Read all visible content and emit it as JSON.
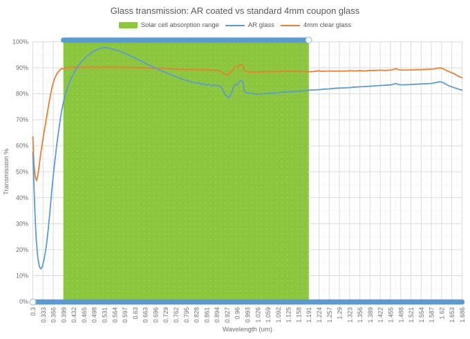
{
  "title": "Glass transmission: AR coated vs standard 4mm coupon glass",
  "legend": [
    {
      "label": "Solar cell absorption range",
      "type": "band",
      "color": "#8CC63F"
    },
    {
      "label": "AR glass",
      "type": "line",
      "color": "#5B9BD5"
    },
    {
      "label": "4mm clear glass",
      "type": "line",
      "color": "#ED7D31"
    }
  ],
  "colors": {
    "grid_major": "#DBDBDB",
    "grid_minor": "#E7E7E7",
    "range_bar": "#5B9BD5",
    "handle_fill": "#FFFFFF",
    "handle_stroke": "#9DC3E6",
    "title_text": "#595959",
    "tick_text": "#6E6E6E",
    "band_green": "#8CC63F",
    "series_blue": "#5B9BD5",
    "series_orange": "#ED7D31"
  },
  "chart_data": {
    "type": "line",
    "title": "Glass transmission: AR coated vs standard 4mm coupon glass",
    "xlabel": "Wavelength (um)",
    "ylabel": "Transmission %",
    "xlim": [
      0.3,
      1.686
    ],
    "ylim": [
      0,
      100
    ],
    "grid": {
      "major": "solid",
      "minor": "dotted"
    },
    "legend_position": "top",
    "x_ticks": [
      "0.3",
      "0.333",
      "0.366",
      "0.399",
      "0.432",
      "0.465",
      "0.498",
      "0.531",
      "0.564",
      "0.597",
      "0.63",
      "0.663",
      "0.696",
      "0.729",
      "0.762",
      "0.795",
      "0.828",
      "0.861",
      "0.894",
      "0.927",
      "0.96",
      "0.993",
      "1.026",
      "1.059",
      "1.092",
      "1.125",
      "1.158",
      "1.191",
      "1.224",
      "1.257",
      "1.29",
      "1.323",
      "1.356",
      "1.389",
      "1.422",
      "1.455",
      "1.488",
      "1.521",
      "1.554",
      "1.587",
      "1.62",
      "1.653",
      "1.686"
    ],
    "y_ticks": [
      "0%",
      "10%",
      "20%",
      "30%",
      "40%",
      "50%",
      "60%",
      "70%",
      "80%",
      "90%",
      "100%"
    ],
    "band": {
      "label": "Solar cell absorption range",
      "from": 0.399,
      "to": 1.191,
      "color": "#8CC63F"
    },
    "range_bars": [
      {
        "y": 100,
        "from": 0.399,
        "to": 1.191,
        "handle": "right"
      },
      {
        "y": 0,
        "from": 0.3,
        "to": 1.686,
        "handle": "left"
      }
    ],
    "series": [
      {
        "name": "AR glass",
        "color": "#5B9BD5",
        "points": [
          [
            0.3,
            57.5
          ],
          [
            0.303,
            47
          ],
          [
            0.307,
            34
          ],
          [
            0.311,
            24
          ],
          [
            0.316,
            17
          ],
          [
            0.321,
            13.5
          ],
          [
            0.326,
            12.6
          ],
          [
            0.33,
            13.2
          ],
          [
            0.336,
            16
          ],
          [
            0.343,
            21
          ],
          [
            0.35,
            28
          ],
          [
            0.357,
            37
          ],
          [
            0.363,
            45
          ],
          [
            0.37,
            53
          ],
          [
            0.378,
            61
          ],
          [
            0.386,
            68
          ],
          [
            0.393,
            73.5
          ],
          [
            0.399,
            77
          ],
          [
            0.407,
            80.5
          ],
          [
            0.415,
            83.5
          ],
          [
            0.424,
            86
          ],
          [
            0.432,
            88
          ],
          [
            0.441,
            89.8
          ],
          [
            0.45,
            91.2
          ],
          [
            0.458,
            92.4
          ],
          [
            0.465,
            93.3
          ],
          [
            0.474,
            94.3
          ],
          [
            0.483,
            95.2
          ],
          [
            0.492,
            96
          ],
          [
            0.5,
            96.6
          ],
          [
            0.51,
            97.2
          ],
          [
            0.52,
            97.6
          ],
          [
            0.531,
            97.8
          ],
          [
            0.542,
            97.7
          ],
          [
            0.553,
            97.4
          ],
          [
            0.564,
            97
          ],
          [
            0.575,
            96.6
          ],
          [
            0.586,
            96.1
          ],
          [
            0.597,
            95.6
          ],
          [
            0.608,
            95
          ],
          [
            0.619,
            94.4
          ],
          [
            0.63,
            93.8
          ],
          [
            0.641,
            93.1
          ],
          [
            0.652,
            92.4
          ],
          [
            0.663,
            91.8
          ],
          [
            0.674,
            91.1
          ],
          [
            0.685,
            90.5
          ],
          [
            0.696,
            89.9
          ],
          [
            0.707,
            89.3
          ],
          [
            0.718,
            88.7
          ],
          [
            0.729,
            88.2
          ],
          [
            0.74,
            87.6
          ],
          [
            0.751,
            87.2
          ],
          [
            0.762,
            86.6
          ],
          [
            0.773,
            86.1
          ],
          [
            0.784,
            85.6
          ],
          [
            0.795,
            85.2
          ],
          [
            0.806,
            84.8
          ],
          [
            0.817,
            84.5
          ],
          [
            0.828,
            84.1
          ],
          [
            0.836,
            84.3
          ],
          [
            0.844,
            83.6
          ],
          [
            0.852,
            84.0
          ],
          [
            0.861,
            83.3
          ],
          [
            0.869,
            83.7
          ],
          [
            0.877,
            83.0
          ],
          [
            0.886,
            83.5
          ],
          [
            0.894,
            83.2
          ],
          [
            0.903,
            83.0
          ],
          [
            0.911,
            82.0
          ],
          [
            0.919,
            80.2
          ],
          [
            0.927,
            78.9
          ],
          [
            0.933,
            78.5
          ],
          [
            0.94,
            79.8
          ],
          [
            0.947,
            82.3
          ],
          [
            0.953,
            83.6
          ],
          [
            0.96,
            83.4
          ],
          [
            0.966,
            84.6
          ],
          [
            0.972,
            85.2
          ],
          [
            0.978,
            84.6
          ],
          [
            0.983,
            81.0
          ],
          [
            0.989,
            80.3
          ],
          [
            0.993,
            80.4
          ],
          [
            1.005,
            80.1
          ],
          [
            1.026,
            79.9
          ],
          [
            1.045,
            80.0
          ],
          [
            1.059,
            80.1
          ],
          [
            1.075,
            80.2
          ],
          [
            1.092,
            80.4
          ],
          [
            1.108,
            80.6
          ],
          [
            1.125,
            80.8
          ],
          [
            1.141,
            80.9
          ],
          [
            1.158,
            81.0
          ],
          [
            1.175,
            81.2
          ],
          [
            1.191,
            81.4
          ],
          [
            1.208,
            81.5
          ],
          [
            1.224,
            81.6
          ],
          [
            1.241,
            81.8
          ],
          [
            1.257,
            81.9
          ],
          [
            1.274,
            82.1
          ],
          [
            1.29,
            82.2
          ],
          [
            1.307,
            82.3
          ],
          [
            1.323,
            82.4
          ],
          [
            1.34,
            82.6
          ],
          [
            1.356,
            82.7
          ],
          [
            1.373,
            82.8
          ],
          [
            1.389,
            82.9
          ],
          [
            1.406,
            83.1
          ],
          [
            1.422,
            83.2
          ],
          [
            1.438,
            83.3
          ],
          [
            1.455,
            83.4
          ],
          [
            1.465,
            83.7
          ],
          [
            1.472,
            84.0
          ],
          [
            1.48,
            83.6
          ],
          [
            1.488,
            83.5
          ],
          [
            1.505,
            83.5
          ],
          [
            1.521,
            83.6
          ],
          [
            1.538,
            83.7
          ],
          [
            1.554,
            83.8
          ],
          [
            1.57,
            83.9
          ],
          [
            1.587,
            84.0
          ],
          [
            1.597,
            84.2
          ],
          [
            1.607,
            84.5
          ],
          [
            1.617,
            84.6
          ],
          [
            1.627,
            84.2
          ],
          [
            1.637,
            83.5
          ],
          [
            1.647,
            82.9
          ],
          [
            1.657,
            82.5
          ],
          [
            1.667,
            82.1
          ],
          [
            1.677,
            81.7
          ],
          [
            1.686,
            81.4
          ]
        ]
      },
      {
        "name": "4mm clear glass",
        "color": "#ED7D31",
        "points": [
          [
            0.3,
            63.5
          ],
          [
            0.302,
            57
          ],
          [
            0.305,
            51
          ],
          [
            0.308,
            47.8
          ],
          [
            0.312,
            46.6
          ],
          [
            0.316,
            48.5
          ],
          [
            0.32,
            52
          ],
          [
            0.325,
            56.5
          ],
          [
            0.33,
            60.5
          ],
          [
            0.336,
            65
          ],
          [
            0.343,
            70
          ],
          [
            0.35,
            75
          ],
          [
            0.357,
            79.5
          ],
          [
            0.363,
            83
          ],
          [
            0.37,
            85.8
          ],
          [
            0.378,
            87.8
          ],
          [
            0.386,
            89
          ],
          [
            0.393,
            89.8
          ],
          [
            0.399,
            89.5
          ],
          [
            0.407,
            90.2
          ],
          [
            0.415,
            89.8
          ],
          [
            0.424,
            90.4
          ],
          [
            0.432,
            90.0
          ],
          [
            0.441,
            90.4
          ],
          [
            0.45,
            89.9
          ],
          [
            0.458,
            90.3
          ],
          [
            0.465,
            90.0
          ],
          [
            0.474,
            90.3
          ],
          [
            0.483,
            90.0
          ],
          [
            0.492,
            90.4
          ],
          [
            0.5,
            90.1
          ],
          [
            0.51,
            90.3
          ],
          [
            0.52,
            90.0
          ],
          [
            0.531,
            90.4
          ],
          [
            0.542,
            90.1
          ],
          [
            0.553,
            90.4
          ],
          [
            0.564,
            90.0
          ],
          [
            0.575,
            90.3
          ],
          [
            0.586,
            90.1
          ],
          [
            0.597,
            90.3
          ],
          [
            0.608,
            90.0
          ],
          [
            0.619,
            90.2
          ],
          [
            0.63,
            90.1
          ],
          [
            0.641,
            89.9
          ],
          [
            0.652,
            90.1
          ],
          [
            0.663,
            89.8
          ],
          [
            0.674,
            90.0
          ],
          [
            0.685,
            89.8
          ],
          [
            0.696,
            89.9
          ],
          [
            0.707,
            89.7
          ],
          [
            0.718,
            89.9
          ],
          [
            0.729,
            89.6
          ],
          [
            0.74,
            89.8
          ],
          [
            0.751,
            89.5
          ],
          [
            0.762,
            89.7
          ],
          [
            0.773,
            89.4
          ],
          [
            0.784,
            89.6
          ],
          [
            0.795,
            89.4
          ],
          [
            0.806,
            89.5
          ],
          [
            0.817,
            89.3
          ],
          [
            0.828,
            89.5
          ],
          [
            0.836,
            89.2
          ],
          [
            0.844,
            89.4
          ],
          [
            0.852,
            89.1
          ],
          [
            0.861,
            89.3
          ],
          [
            0.869,
            89.0
          ],
          [
            0.877,
            89.2
          ],
          [
            0.886,
            89.0
          ],
          [
            0.894,
            89.1
          ],
          [
            0.903,
            88.9
          ],
          [
            0.911,
            88.3
          ],
          [
            0.919,
            87.7
          ],
          [
            0.927,
            87.3
          ],
          [
            0.933,
            87.5
          ],
          [
            0.94,
            88.3
          ],
          [
            0.947,
            89.5
          ],
          [
            0.953,
            90.4
          ],
          [
            0.96,
            90.2
          ],
          [
            0.966,
            91.0
          ],
          [
            0.972,
            91.3
          ],
          [
            0.978,
            90.8
          ],
          [
            0.983,
            89.0
          ],
          [
            0.989,
            88.5
          ],
          [
            0.993,
            88.5
          ],
          [
            1.005,
            88.4
          ],
          [
            1.026,
            88.4
          ],
          [
            1.045,
            88.5
          ],
          [
            1.059,
            88.5
          ],
          [
            1.075,
            88.6
          ],
          [
            1.092,
            88.5
          ],
          [
            1.108,
            88.7
          ],
          [
            1.125,
            88.6
          ],
          [
            1.141,
            88.7
          ],
          [
            1.158,
            88.6
          ],
          [
            1.175,
            88.6
          ],
          [
            1.191,
            88.5
          ],
          [
            1.208,
            88.6
          ],
          [
            1.224,
            88.9
          ],
          [
            1.234,
            88.6
          ],
          [
            1.241,
            88.7
          ],
          [
            1.257,
            88.8
          ],
          [
            1.274,
            88.7
          ],
          [
            1.29,
            88.8
          ],
          [
            1.307,
            88.7
          ],
          [
            1.323,
            88.9
          ],
          [
            1.34,
            88.8
          ],
          [
            1.356,
            88.9
          ],
          [
            1.373,
            88.8
          ],
          [
            1.389,
            89.0
          ],
          [
            1.406,
            89.0
          ],
          [
            1.422,
            89.1
          ],
          [
            1.438,
            89.0
          ],
          [
            1.455,
            89.1
          ],
          [
            1.465,
            89.4
          ],
          [
            1.472,
            89.7
          ],
          [
            1.48,
            89.3
          ],
          [
            1.488,
            89.2
          ],
          [
            1.505,
            89.1
          ],
          [
            1.521,
            89.2
          ],
          [
            1.538,
            89.3
          ],
          [
            1.554,
            89.3
          ],
          [
            1.57,
            89.4
          ],
          [
            1.587,
            89.5
          ],
          [
            1.597,
            89.6
          ],
          [
            1.607,
            89.9
          ],
          [
            1.617,
            90.0
          ],
          [
            1.627,
            89.5
          ],
          [
            1.637,
            88.9
          ],
          [
            1.647,
            88.4
          ],
          [
            1.657,
            87.9
          ],
          [
            1.667,
            87.3
          ],
          [
            1.677,
            86.6
          ],
          [
            1.686,
            86.2
          ]
        ]
      }
    ]
  }
}
